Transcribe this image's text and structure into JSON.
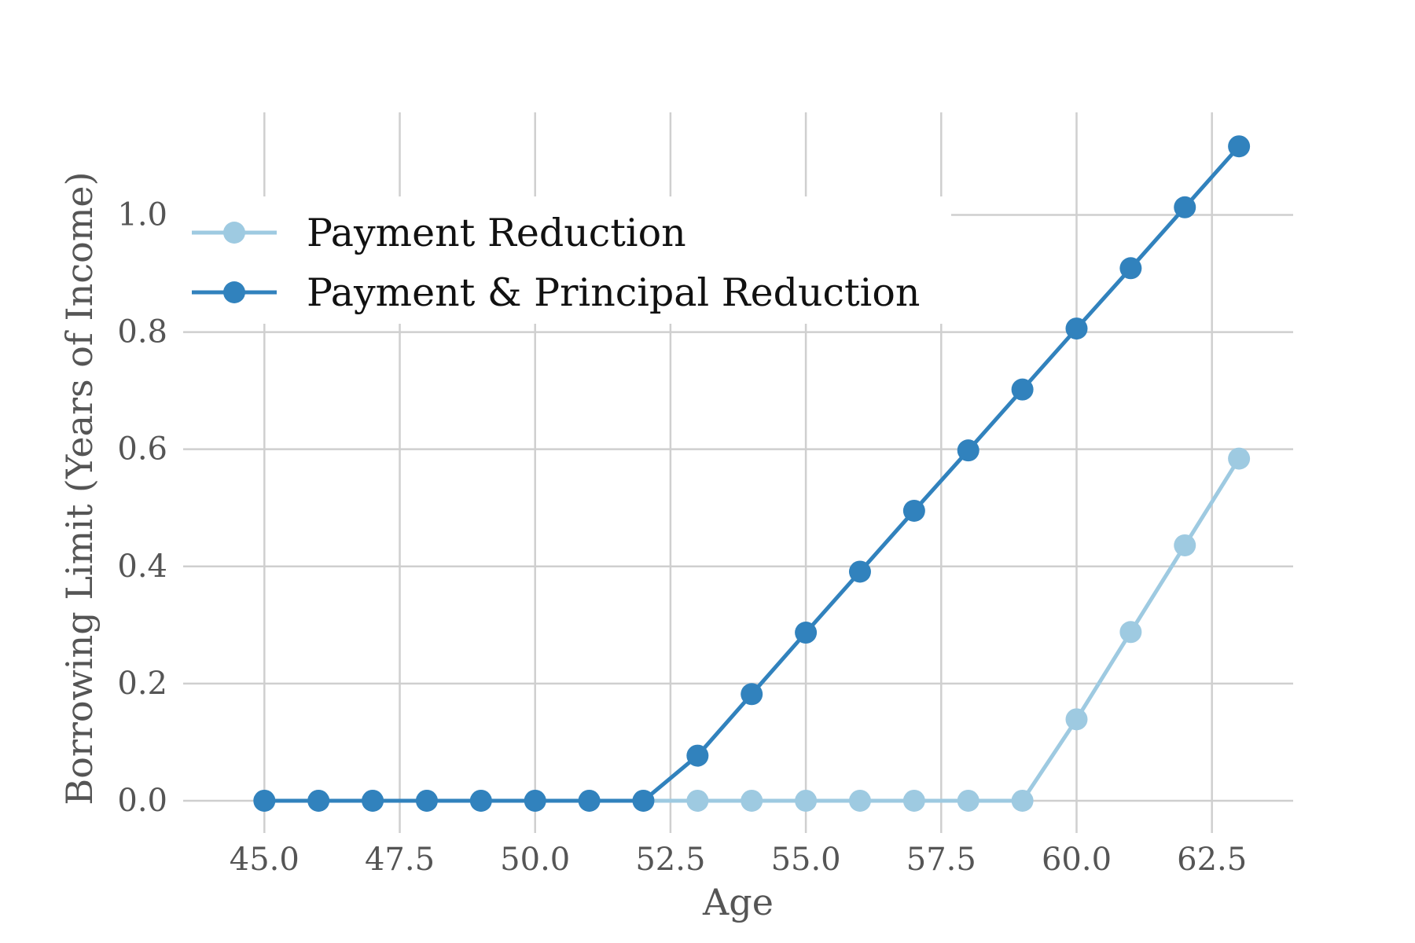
{
  "chart_data": {
    "type": "line",
    "xlabel": "Age",
    "ylabel": "Borrowing Limit (Years of Income)",
    "xlim": [
      43.5,
      64.0
    ],
    "ylim": [
      -0.055,
      1.175
    ],
    "xticks": [
      45.0,
      47.5,
      50.0,
      52.5,
      55.0,
      57.5,
      60.0,
      62.5
    ],
    "xtick_labels": [
      "45.0",
      "47.5",
      "50.0",
      "52.5",
      "55.0",
      "57.5",
      "60.0",
      "62.5"
    ],
    "yticks": [
      0.0,
      0.2,
      0.4,
      0.6,
      0.8,
      1.0
    ],
    "ytick_labels": [
      "0.0",
      "0.2",
      "0.4",
      "0.6",
      "0.8",
      "1.0"
    ],
    "grid": true,
    "legend_position": "upper-left",
    "x": [
      45,
      46,
      47,
      48,
      49,
      50,
      51,
      52,
      53,
      54,
      55,
      56,
      57,
      58,
      59,
      60,
      61,
      62,
      63
    ],
    "series": [
      {
        "name": "Payment Reduction",
        "color": "#9ecae1",
        "values": [
          0,
          0,
          0,
          0,
          0,
          0,
          0,
          0,
          0,
          0,
          0,
          0,
          0,
          0,
          0,
          0.139,
          0.288,
          0.436,
          0.584
        ]
      },
      {
        "name": "Payment & Principal Reduction",
        "color": "#3182bd",
        "values": [
          0,
          0,
          0,
          0,
          0,
          0,
          0,
          0,
          0.077,
          0.182,
          0.287,
          0.391,
          0.495,
          0.598,
          0.702,
          0.806,
          0.909,
          1.013,
          1.117
        ]
      }
    ]
  }
}
